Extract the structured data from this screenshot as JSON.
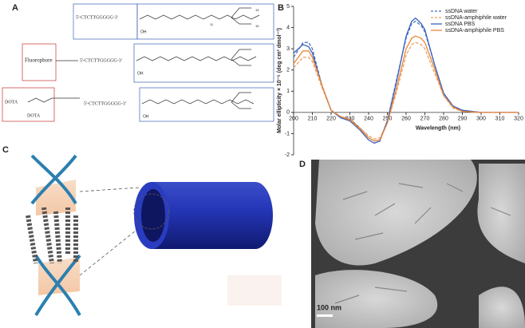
{
  "panel_labels": {
    "a": "A",
    "b": "B",
    "c": "C",
    "d": "D"
  },
  "structures": {
    "sequence": "5'-CTCTTGGGGG-3'",
    "oh": "OH",
    "n1": "11",
    "n2": "15",
    "fluorophore": "Fluorophore",
    "dota": "DOTA"
  },
  "micrograph": {
    "scale_bar": "100 nm"
  },
  "chart_data": {
    "type": "line",
    "y_label": "Molar ellipticity × 10⁻⁵ (deg cm² dmol⁻¹)",
    "x_label": "Wavelength (nm)",
    "x": [
      200,
      205,
      208,
      210,
      215,
      220,
      225,
      230,
      235,
      240,
      243,
      246,
      250,
      255,
      260,
      263,
      265,
      268,
      270,
      275,
      280,
      285,
      290,
      300,
      310,
      320
    ],
    "xlim": [
      200,
      320
    ],
    "xticks": [
      200,
      210,
      220,
      230,
      240,
      250,
      260,
      270,
      280,
      290,
      300,
      310,
      320
    ],
    "ylim": [
      -2,
      5
    ],
    "yticks": [
      -2,
      -1,
      0,
      1,
      2,
      3,
      4,
      5
    ],
    "legend": "upper-right",
    "series": [
      {
        "name": "ssDNA water",
        "color": "#4a6fc4",
        "style": "dashed",
        "values": [
          2.6,
          3.3,
          3.3,
          3.0,
          1.3,
          0.1,
          -0.2,
          -0.3,
          -0.7,
          -1.2,
          -1.35,
          -1.3,
          -0.4,
          1.6,
          3.5,
          4.2,
          4.3,
          4.1,
          3.8,
          2.3,
          0.9,
          0.3,
          0.1,
          0,
          0,
          0
        ]
      },
      {
        "name": "ssDNA-amphiphile water",
        "color": "#f0a060",
        "style": "dashed",
        "values": [
          2.1,
          2.6,
          2.6,
          2.4,
          1.2,
          0.1,
          -0.2,
          -0.3,
          -0.7,
          -1.1,
          -1.25,
          -1.2,
          -0.5,
          1.0,
          2.7,
          3.2,
          3.3,
          3.2,
          3.0,
          1.9,
          0.8,
          0.2,
          0.05,
          0,
          0,
          0
        ]
      },
      {
        "name": "ssDNA PBS",
        "color": "#3a62c0",
        "style": "solid",
        "values": [
          2.8,
          3.2,
          3.1,
          2.8,
          1.3,
          0.1,
          -0.25,
          -0.4,
          -0.8,
          -1.3,
          -1.45,
          -1.35,
          -0.4,
          1.5,
          3.6,
          4.3,
          4.45,
          4.2,
          3.9,
          2.3,
          0.9,
          0.3,
          0.1,
          0,
          0,
          0
        ]
      },
      {
        "name": "ssDNA-amphiphile PBS",
        "color": "#e8873a",
        "style": "solid",
        "values": [
          2.3,
          2.9,
          2.9,
          2.6,
          1.3,
          0.1,
          -0.2,
          -0.35,
          -0.75,
          -1.2,
          -1.35,
          -1.3,
          -0.5,
          1.2,
          3.0,
          3.5,
          3.6,
          3.5,
          3.3,
          2.1,
          0.8,
          0.25,
          0.05,
          0,
          0,
          0
        ]
      }
    ]
  }
}
